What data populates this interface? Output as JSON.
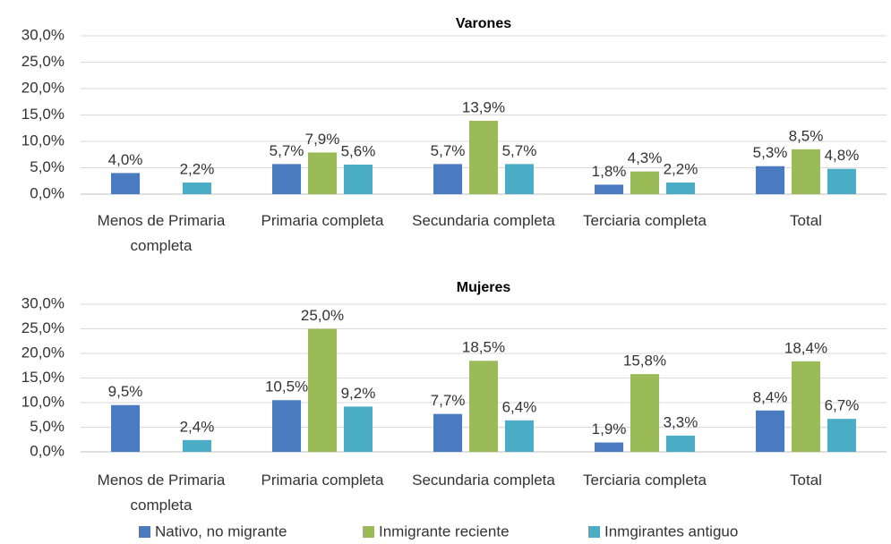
{
  "chart_data": [
    {
      "type": "bar",
      "title": "Varones",
      "categories": [
        "Menos de Primaria completa",
        "Primaria completa",
        "Secundaria completa",
        "Terciaria completa",
        "Total"
      ],
      "series": [
        {
          "color": "#4a7bc0",
          "values": [
            4.0,
            5.7,
            5.7,
            1.8,
            5.3
          ],
          "value_labels": [
            "4,0%",
            "5,7%",
            "5,7%",
            "1,8%",
            "5,3%"
          ]
        },
        {
          "color": "#9bbb59",
          "values": [
            null,
            7.9,
            13.9,
            4.3,
            8.5
          ],
          "value_labels": [
            null,
            "7,9%",
            "13,9%",
            "4,3%",
            "8,5%"
          ]
        },
        {
          "color": "#4bacc6",
          "values": [
            2.2,
            5.6,
            5.7,
            2.2,
            4.8
          ],
          "value_labels": [
            "2,2%",
            "5,6%",
            "5,7%",
            "2,2%",
            "4,8%"
          ]
        }
      ],
      "ylim": [
        0,
        30
      ],
      "yticks": [
        {
          "value": 0,
          "label": "0,0%"
        },
        {
          "value": 5,
          "label": "5,0%"
        },
        {
          "value": 10,
          "label": "10,0%"
        },
        {
          "value": 15,
          "label": "15,0%"
        },
        {
          "value": 20,
          "label": "20,0%"
        },
        {
          "value": 25,
          "label": "25,0%"
        },
        {
          "value": 30,
          "label": "30,0%"
        }
      ],
      "grid": true
    },
    {
      "type": "bar",
      "title": "Mujeres",
      "categories": [
        "Menos de Primaria completa",
        "Primaria completa",
        "Secundaria completa",
        "Terciaria completa",
        "Total"
      ],
      "series": [
        {
          "name": "Nativo, no migrante",
          "color": "#4a7bc0",
          "values": [
            9.5,
            10.5,
            7.7,
            1.9,
            8.4
          ],
          "value_labels": [
            "9,5%",
            "10,5%",
            "7,7%",
            "1,9%",
            "8,4%"
          ]
        },
        {
          "name": "Inmigrante reciente",
          "color": "#9bbb59",
          "values": [
            null,
            25.0,
            18.5,
            15.8,
            18.4
          ],
          "value_labels": [
            null,
            "25,0%",
            "18,5%",
            "15,8%",
            "18,4%"
          ]
        },
        {
          "name": "Inmgirantes antiguo",
          "color": "#4bacc6",
          "values": [
            2.4,
            9.2,
            6.4,
            3.3,
            6.7
          ],
          "value_labels": [
            "2,4%",
            "9,2%",
            "6,4%",
            "3,3%",
            "6,7%"
          ]
        }
      ],
      "ylim": [
        0,
        30
      ],
      "yticks": [
        {
          "value": 0,
          "label": "0,0%"
        },
        {
          "value": 5,
          "label": "5,0%"
        },
        {
          "value": 10,
          "label": "10,0%"
        },
        {
          "value": 15,
          "label": "15,0%"
        },
        {
          "value": 20,
          "label": "20,0%"
        },
        {
          "value": 25,
          "label": "25,0%"
        },
        {
          "value": 30,
          "label": "30,0%"
        }
      ],
      "grid": true
    }
  ]
}
